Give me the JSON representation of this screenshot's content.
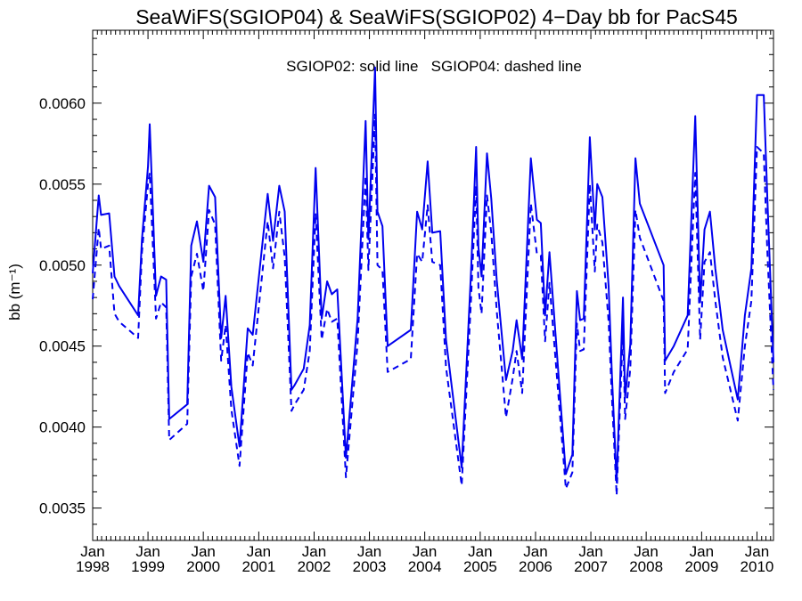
{
  "chart_data": {
    "type": "line",
    "title": "SeaWiFS(SGIOP04) & SeaWiFS(SGIOP02) 4−Day bb for PacS45",
    "annotation": "SGIOP02: solid line   SGIOP04: dashed line",
    "ylabel": "bb (m⁻¹)",
    "xlabel": "",
    "x_axis": "date",
    "xlim": [
      "1998-01-01",
      "2010-04-20"
    ],
    "ylim": [
      0.0033,
      0.00645
    ],
    "yticks": [
      0.0035,
      0.004,
      0.0045,
      0.005,
      0.0055,
      0.006
    ],
    "ytick_labels": [
      "0.0035",
      "0.0040",
      "0.0045",
      "0.0050",
      "0.0055",
      "0.0060"
    ],
    "xticks": [
      {
        "date": "1998-01-01",
        "month": "Jan",
        "year": "1998"
      },
      {
        "date": "1999-01-01",
        "month": "Jan",
        "year": "1999"
      },
      {
        "date": "2000-01-01",
        "month": "Jan",
        "year": "2000"
      },
      {
        "date": "2001-01-01",
        "month": "Jan",
        "year": "2001"
      },
      {
        "date": "2002-01-01",
        "month": "Jan",
        "year": "2002"
      },
      {
        "date": "2003-01-01",
        "month": "Jan",
        "year": "2003"
      },
      {
        "date": "2004-01-01",
        "month": "Jan",
        "year": "2004"
      },
      {
        "date": "2005-01-01",
        "month": "Jan",
        "year": "2005"
      },
      {
        "date": "2006-01-01",
        "month": "Jan",
        "year": "2006"
      },
      {
        "date": "2007-01-01",
        "month": "Jan",
        "year": "2007"
      },
      {
        "date": "2008-01-01",
        "month": "Jan",
        "year": "2008"
      },
      {
        "date": "2009-01-01",
        "month": "Jan",
        "year": "2009"
      },
      {
        "date": "2010-01-01",
        "month": "Jan",
        "year": "2010"
      }
    ],
    "grid": false,
    "color": "#0000ee",
    "series": [
      {
        "name": "SGIOP02",
        "style": "solid",
        "points": [
          [
            "1998-01-01",
            0.00495
          ],
          [
            "1998-02-10",
            0.00543
          ],
          [
            "1998-02-25",
            0.00531
          ],
          [
            "1998-04-20",
            0.00532
          ],
          [
            "1998-05-25",
            0.00493
          ],
          [
            "1998-06-25",
            0.00487
          ],
          [
            "1998-10-28",
            0.00469
          ],
          [
            "1998-11-22",
            0.00516
          ],
          [
            "1999-01-01",
            0.00561
          ],
          [
            "1999-01-12",
            0.00587
          ],
          [
            "1999-02-23",
            0.00481
          ],
          [
            "1999-03-28",
            0.00493
          ],
          [
            "1999-05-01",
            0.00491
          ],
          [
            "1999-05-21",
            0.00405
          ],
          [
            "1999-09-17",
            0.00414
          ],
          [
            "1999-10-13",
            0.00512
          ],
          [
            "1999-11-20",
            0.00527
          ],
          [
            "2000-01-01",
            0.00502
          ],
          [
            "2000-02-08",
            0.00549
          ],
          [
            "2000-03-19",
            0.00542
          ],
          [
            "2000-04-28",
            0.00455
          ],
          [
            "2000-05-27",
            0.00481
          ],
          [
            "2000-07-04",
            0.00425
          ],
          [
            "2000-08-27",
            0.00388
          ],
          [
            "2000-10-20",
            0.00461
          ],
          [
            "2000-11-22",
            0.00457
          ],
          [
            "2001-03-01",
            0.00544
          ],
          [
            "2001-04-05",
            0.00515
          ],
          [
            "2001-05-16",
            0.00549
          ],
          [
            "2001-06-21",
            0.00533
          ],
          [
            "2001-08-05",
            0.00423
          ],
          [
            "2001-08-26",
            0.00426
          ],
          [
            "2001-10-24",
            0.00436
          ],
          [
            "2001-12-03",
            0.00463
          ],
          [
            "2002-01-11",
            0.0056
          ],
          [
            "2002-02-20",
            0.00467
          ],
          [
            "2002-03-28",
            0.0049
          ],
          [
            "2002-04-28",
            0.00482
          ],
          [
            "2002-06-03",
            0.00485
          ],
          [
            "2002-07-30",
            0.00381
          ],
          [
            "2002-10-15",
            0.00467
          ],
          [
            "2002-12-07",
            0.00589
          ],
          [
            "2002-12-25",
            0.00516
          ],
          [
            "2003-02-07",
            0.00622
          ],
          [
            "2003-02-23",
            0.00533
          ],
          [
            "2003-03-28",
            0.00524
          ],
          [
            "2003-05-01",
            0.0045
          ],
          [
            "2003-10-01",
            0.0046
          ],
          [
            "2003-11-12",
            0.00533
          ],
          [
            "2003-12-15",
            0.00522
          ],
          [
            "2004-01-20",
            0.00564
          ],
          [
            "2004-02-20",
            0.0052
          ],
          [
            "2004-04-12",
            0.00521
          ],
          [
            "2004-05-20",
            0.00454
          ],
          [
            "2004-09-01",
            0.00375
          ],
          [
            "2004-11-01",
            0.00495
          ],
          [
            "2004-12-05",
            0.00573
          ],
          [
            "2004-12-20",
            0.00511
          ],
          [
            "2005-01-10",
            0.00493
          ],
          [
            "2005-02-15",
            0.00569
          ],
          [
            "2005-03-15",
            0.00541
          ],
          [
            "2005-04-20",
            0.00491
          ],
          [
            "2005-06-20",
            0.00429
          ],
          [
            "2005-08-03",
            0.00447
          ],
          [
            "2005-08-29",
            0.00466
          ],
          [
            "2005-10-05",
            0.00442
          ],
          [
            "2005-12-01",
            0.00566
          ],
          [
            "2006-01-10",
            0.00528
          ],
          [
            "2006-02-05",
            0.00526
          ],
          [
            "2006-03-05",
            0.00469
          ],
          [
            "2006-04-03",
            0.00508
          ],
          [
            "2006-07-20",
            0.00371
          ],
          [
            "2006-09-01",
            0.00383
          ],
          [
            "2006-10-01",
            0.00484
          ],
          [
            "2006-10-22",
            0.00466
          ],
          [
            "2006-11-15",
            0.00467
          ],
          [
            "2006-12-25",
            0.00579
          ],
          [
            "2007-01-27",
            0.00522
          ],
          [
            "2007-02-12",
            0.0055
          ],
          [
            "2007-03-18",
            0.00542
          ],
          [
            "2007-04-28",
            0.00487
          ],
          [
            "2007-05-20",
            0.00432
          ],
          [
            "2007-06-20",
            0.00366
          ],
          [
            "2007-08-01",
            0.0048
          ],
          [
            "2007-08-15",
            0.00418
          ],
          [
            "2007-09-18",
            0.00451
          ],
          [
            "2007-10-22",
            0.00566
          ],
          [
            "2007-11-20",
            0.00538
          ],
          [
            "2008-04-25",
            0.005
          ],
          [
            "2008-05-05",
            0.00441
          ],
          [
            "2008-07-01",
            0.0045
          ],
          [
            "2008-10-01",
            0.00469
          ],
          [
            "2008-11-20",
            0.00592
          ],
          [
            "2008-12-22",
            0.00477
          ],
          [
            "2009-01-20",
            0.00522
          ],
          [
            "2009-02-25",
            0.00533
          ],
          [
            "2009-04-01",
            0.00498
          ],
          [
            "2009-05-20",
            0.0046
          ],
          [
            "2009-08-27",
            0.00417
          ],
          [
            "2009-10-13",
            0.00469
          ],
          [
            "2009-11-25",
            0.00498
          ],
          [
            "2010-01-01",
            0.00605
          ],
          [
            "2010-02-15",
            0.00605
          ],
          [
            "2010-03-10",
            0.00543
          ],
          [
            "2010-04-20",
            0.0044
          ]
        ]
      },
      {
        "name": "SGIOP04",
        "style": "dashed",
        "points": [
          [
            "1998-01-01",
            0.00479
          ],
          [
            "1998-02-10",
            0.00523
          ],
          [
            "1998-02-25",
            0.0051
          ],
          [
            "1998-04-20",
            0.00512
          ],
          [
            "1998-05-25",
            0.0047
          ],
          [
            "1998-06-25",
            0.00465
          ],
          [
            "1998-10-28",
            0.00455
          ],
          [
            "1998-11-22",
            0.00508
          ],
          [
            "1999-01-01",
            0.0055
          ],
          [
            "1999-01-12",
            0.00557
          ],
          [
            "1999-02-23",
            0.00467
          ],
          [
            "1999-03-28",
            0.00477
          ],
          [
            "1999-05-01",
            0.00474
          ],
          [
            "1999-05-21",
            0.00392
          ],
          [
            "1999-09-17",
            0.00402
          ],
          [
            "1999-10-13",
            0.00493
          ],
          [
            "1999-11-20",
            0.00507
          ],
          [
            "2000-01-01",
            0.00484
          ],
          [
            "2000-02-08",
            0.00534
          ],
          [
            "2000-03-19",
            0.00525
          ],
          [
            "2000-04-28",
            0.00441
          ],
          [
            "2000-05-27",
            0.00463
          ],
          [
            "2000-07-04",
            0.00411
          ],
          [
            "2000-08-27",
            0.00376
          ],
          [
            "2000-10-20",
            0.00446
          ],
          [
            "2000-11-22",
            0.00438
          ],
          [
            "2001-03-01",
            0.00527
          ],
          [
            "2001-04-05",
            0.00498
          ],
          [
            "2001-05-16",
            0.00533
          ],
          [
            "2001-06-21",
            0.00505
          ],
          [
            "2001-08-05",
            0.0041
          ],
          [
            "2001-08-26",
            0.00414
          ],
          [
            "2001-10-24",
            0.00423
          ],
          [
            "2001-12-03",
            0.00447
          ],
          [
            "2002-01-11",
            0.00532
          ],
          [
            "2002-02-20",
            0.00454
          ],
          [
            "2002-03-28",
            0.00473
          ],
          [
            "2002-04-28",
            0.00465
          ],
          [
            "2002-06-03",
            0.00467
          ],
          [
            "2002-07-30",
            0.00369
          ],
          [
            "2002-10-15",
            0.00452
          ],
          [
            "2002-12-07",
            0.00555
          ],
          [
            "2002-12-25",
            0.00497
          ],
          [
            "2003-02-07",
            0.00593
          ],
          [
            "2003-02-23",
            0.005
          ],
          [
            "2003-03-28",
            0.00497
          ],
          [
            "2003-05-01",
            0.00434
          ],
          [
            "2003-10-01",
            0.00442
          ],
          [
            "2003-11-12",
            0.00507
          ],
          [
            "2003-12-15",
            0.00502
          ],
          [
            "2004-01-20",
            0.00537
          ],
          [
            "2004-02-20",
            0.00502
          ],
          [
            "2004-04-12",
            0.005
          ],
          [
            "2004-05-20",
            0.00437
          ],
          [
            "2004-09-01",
            0.00364
          ],
          [
            "2004-11-01",
            0.00478
          ],
          [
            "2004-12-05",
            0.00549
          ],
          [
            "2004-12-20",
            0.00486
          ],
          [
            "2005-01-10",
            0.0047
          ],
          [
            "2005-02-15",
            0.00543
          ],
          [
            "2005-03-15",
            0.0052
          ],
          [
            "2005-04-20",
            0.00472
          ],
          [
            "2005-06-20",
            0.00406
          ],
          [
            "2005-08-03",
            0.0043
          ],
          [
            "2005-08-29",
            0.00447
          ],
          [
            "2005-10-05",
            0.00421
          ],
          [
            "2005-12-01",
            0.00538
          ],
          [
            "2006-01-10",
            0.00507
          ],
          [
            "2006-02-05",
            0.00506
          ],
          [
            "2006-03-05",
            0.00453
          ],
          [
            "2006-04-03",
            0.00489
          ],
          [
            "2006-07-20",
            0.00362
          ],
          [
            "2006-09-01",
            0.00372
          ],
          [
            "2006-10-01",
            0.00464
          ],
          [
            "2006-10-22",
            0.00447
          ],
          [
            "2006-11-15",
            0.00448
          ],
          [
            "2006-12-25",
            0.0055
          ],
          [
            "2007-01-27",
            0.00496
          ],
          [
            "2007-02-12",
            0.00525
          ],
          [
            "2007-03-18",
            0.00514
          ],
          [
            "2007-04-28",
            0.00465
          ],
          [
            "2007-05-20",
            0.00418
          ],
          [
            "2007-06-20",
            0.00358
          ],
          [
            "2007-08-01",
            0.00461
          ],
          [
            "2007-08-15",
            0.00405
          ],
          [
            "2007-09-18",
            0.00436
          ],
          [
            "2007-10-22",
            0.00534
          ],
          [
            "2007-11-20",
            0.00517
          ],
          [
            "2008-04-25",
            0.00478
          ],
          [
            "2008-05-05",
            0.00421
          ],
          [
            "2008-07-01",
            0.00434
          ],
          [
            "2008-10-01",
            0.00448
          ],
          [
            "2008-11-20",
            0.00557
          ],
          [
            "2008-12-22",
            0.00454
          ],
          [
            "2009-01-20",
            0.00502
          ],
          [
            "2009-02-25",
            0.00508
          ],
          [
            "2009-04-01",
            0.00478
          ],
          [
            "2009-05-20",
            0.00443
          ],
          [
            "2009-08-27",
            0.00404
          ],
          [
            "2009-10-13",
            0.0045
          ],
          [
            "2009-11-25",
            0.00478
          ],
          [
            "2010-01-01",
            0.00573
          ],
          [
            "2010-02-15",
            0.00569
          ],
          [
            "2010-03-10",
            0.0051
          ],
          [
            "2010-04-20",
            0.00423
          ]
        ]
      }
    ]
  }
}
